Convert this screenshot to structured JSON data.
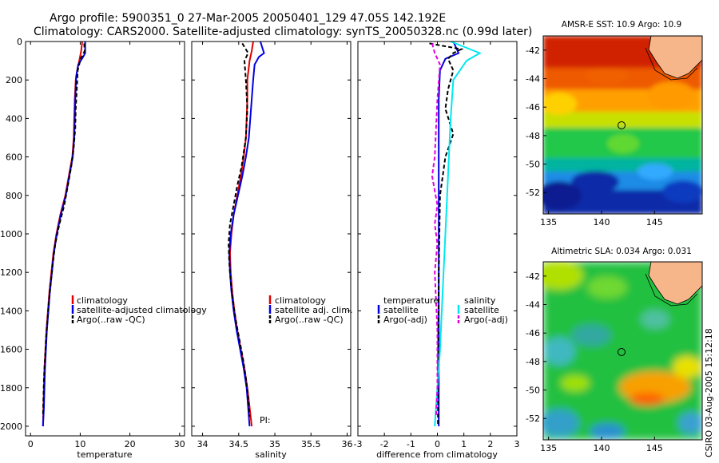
{
  "header": {
    "title_line1": "Argo profile:  5900351_0 27-Mar-2005 20050401_129 47.05S 142.192E",
    "title_line2": "Climatology: CARS2000. Satellite-adjusted climatology: synTS_20050328.nc (0.99d later)"
  },
  "side_label": "CSIRO 03-Aug-2005 15:12:18",
  "pi_label": "PI:",
  "colors": {
    "climatology": "#e00000",
    "satellite": "#0000e0",
    "argo": "#000000",
    "salinity_sat": "#00e8f0",
    "salinity_argo": "#e000e0"
  },
  "chart_data": [
    {
      "type": "line",
      "title": "",
      "xlabel": "temperature",
      "ylabel": "",
      "xlim": [
        -1,
        31
      ],
      "ylim": [
        2050,
        0
      ],
      "xticks": [
        0,
        10,
        20,
        30
      ],
      "yticks": [
        0,
        200,
        400,
        600,
        800,
        1000,
        1200,
        1400,
        1600,
        1800,
        2000
      ],
      "legend": [
        "climatology",
        "satellite-adjusted climatology",
        "Argo(..raw -QC)"
      ],
      "series": [
        {
          "name": "climatology",
          "color": "#e00000",
          "points": [
            [
              10.4,
              0
            ],
            [
              10.2,
              50
            ],
            [
              9.8,
              100
            ],
            [
              9.4,
              150
            ],
            [
              9.1,
              200
            ],
            [
              8.9,
              300
            ],
            [
              8.8,
              400
            ],
            [
              8.7,
              500
            ],
            [
              8.4,
              600
            ],
            [
              7.7,
              700
            ],
            [
              7.0,
              800
            ],
            [
              6.0,
              900
            ],
            [
              5.2,
              1000
            ],
            [
              4.6,
              1100
            ],
            [
              4.2,
              1200
            ],
            [
              3.8,
              1300
            ],
            [
              3.5,
              1400
            ],
            [
              3.2,
              1500
            ],
            [
              3.0,
              1600
            ],
            [
              2.8,
              1700
            ],
            [
              2.7,
              1800
            ],
            [
              2.6,
              1900
            ],
            [
              2.5,
              2000
            ]
          ]
        },
        {
          "name": "satellite-adjusted climatology",
          "color": "#0000e0",
          "points": [
            [
              11.0,
              0
            ],
            [
              11.0,
              60
            ],
            [
              10.6,
              80
            ],
            [
              9.6,
              120
            ],
            [
              9.2,
              180
            ],
            [
              9.0,
              300
            ],
            [
              8.9,
              400
            ],
            [
              8.8,
              500
            ],
            [
              8.5,
              600
            ],
            [
              7.8,
              700
            ],
            [
              7.1,
              800
            ],
            [
              6.1,
              900
            ],
            [
              5.3,
              1000
            ],
            [
              4.7,
              1100
            ],
            [
              4.3,
              1200
            ],
            [
              3.9,
              1300
            ],
            [
              3.6,
              1400
            ],
            [
              3.3,
              1500
            ],
            [
              3.1,
              1600
            ],
            [
              2.9,
              1700
            ],
            [
              2.8,
              1800
            ],
            [
              2.7,
              1900
            ],
            [
              2.5,
              2000
            ]
          ]
        },
        {
          "name": "Argo(..raw -QC)",
          "color": "#000000",
          "dashed": true,
          "points": [
            [
              10.8,
              10
            ],
            [
              10.9,
              50
            ],
            [
              10.1,
              90
            ],
            [
              9.5,
              150
            ],
            [
              9.3,
              250
            ],
            [
              9.1,
              350
            ],
            [
              9.0,
              450
            ],
            [
              8.7,
              550
            ],
            [
              8.2,
              650
            ],
            [
              7.5,
              750
            ],
            [
              6.8,
              850
            ],
            [
              5.8,
              950
            ],
            [
              5.0,
              1050
            ],
            [
              4.5,
              1150
            ],
            [
              4.1,
              1250
            ],
            [
              3.7,
              1350
            ],
            [
              3.4,
              1450
            ],
            [
              3.1,
              1550
            ],
            [
              2.9,
              1650
            ],
            [
              2.7,
              1750
            ],
            [
              2.6,
              1850
            ],
            [
              2.5,
              1950
            ]
          ]
        }
      ]
    },
    {
      "type": "line",
      "title": "",
      "xlabel": "salinity",
      "ylabel": "",
      "xlim": [
        33.85,
        36.05
      ],
      "ylim": [
        2050,
        0
      ],
      "xticks": [
        34,
        34.5,
        35,
        35.5,
        36
      ],
      "xticklabels": [
        "34",
        "34.5",
        "35",
        "35.5",
        "36"
      ],
      "yticks": [
        0,
        200,
        400,
        600,
        800,
        1000,
        1200,
        1400,
        1600,
        1800,
        2000
      ],
      "legend": [
        "climatology",
        "satellite adj. clim.",
        "Argo(..raw -QC)"
      ],
      "series": [
        {
          "name": "climatology",
          "color": "#e00000",
          "points": [
            [
              34.7,
              0
            ],
            [
              34.68,
              50
            ],
            [
              34.65,
              100
            ],
            [
              34.62,
              200
            ],
            [
              34.62,
              300
            ],
            [
              34.61,
              400
            ],
            [
              34.6,
              500
            ],
            [
              34.57,
              600
            ],
            [
              34.53,
              700
            ],
            [
              34.48,
              800
            ],
            [
              34.43,
              900
            ],
            [
              34.4,
              1000
            ],
            [
              34.38,
              1100
            ],
            [
              34.39,
              1200
            ],
            [
              34.41,
              1300
            ],
            [
              34.44,
              1400
            ],
            [
              34.48,
              1500
            ],
            [
              34.53,
              1600
            ],
            [
              34.58,
              1700
            ],
            [
              34.62,
              1800
            ],
            [
              34.65,
              1900
            ],
            [
              34.68,
              2000
            ]
          ]
        },
        {
          "name": "satellite adj. clim.",
          "color": "#0000e0",
          "points": [
            [
              34.8,
              0
            ],
            [
              34.85,
              60
            ],
            [
              34.78,
              80
            ],
            [
              34.72,
              120
            ],
            [
              34.7,
              200
            ],
            [
              34.68,
              300
            ],
            [
              34.66,
              400
            ],
            [
              34.64,
              500
            ],
            [
              34.6,
              600
            ],
            [
              34.55,
              700
            ],
            [
              34.49,
              800
            ],
            [
              34.43,
              900
            ],
            [
              34.39,
              1000
            ],
            [
              34.37,
              1100
            ],
            [
              34.38,
              1200
            ],
            [
              34.4,
              1300
            ],
            [
              34.43,
              1400
            ],
            [
              34.47,
              1500
            ],
            [
              34.52,
              1600
            ],
            [
              34.57,
              1700
            ],
            [
              34.61,
              1800
            ],
            [
              34.63,
              1900
            ],
            [
              34.65,
              2000
            ]
          ]
        },
        {
          "name": "Argo(..raw -QC)",
          "color": "#000000",
          "dashed": true,
          "points": [
            [
              34.55,
              10
            ],
            [
              34.63,
              60
            ],
            [
              34.58,
              100
            ],
            [
              34.6,
              200
            ],
            [
              34.62,
              350
            ],
            [
              34.6,
              500
            ],
            [
              34.54,
              650
            ],
            [
              34.48,
              750
            ],
            [
              34.43,
              850
            ],
            [
              34.38,
              950
            ],
            [
              34.36,
              1050
            ],
            [
              34.37,
              1150
            ],
            [
              34.39,
              1250
            ],
            [
              34.42,
              1350
            ],
            [
              34.46,
              1450
            ],
            [
              34.51,
              1550
            ],
            [
              34.56,
              1650
            ],
            [
              34.6,
              1750
            ],
            [
              34.63,
              1850
            ],
            [
              34.65,
              1950
            ]
          ]
        }
      ]
    },
    {
      "type": "line",
      "title": "",
      "xlabel": "difference from climatology",
      "ylabel": "",
      "xlim": [
        -3,
        3
      ],
      "ylim": [
        2050,
        0
      ],
      "xticks": [
        -3,
        -2,
        -1,
        0,
        1,
        2,
        3
      ],
      "yticks": [
        0,
        200,
        400,
        600,
        800,
        1000,
        1200,
        1400,
        1600,
        1800,
        2000
      ],
      "legend_left": [
        "temperature",
        "satellite",
        "Argo(-adj)"
      ],
      "legend_right": [
        "salinity",
        "satellite",
        "Argo(-adj)"
      ],
      "series": [
        {
          "name": "temperature satellite",
          "color": "#0000e0",
          "points": [
            [
              0.6,
              0
            ],
            [
              0.8,
              60
            ],
            [
              0.3,
              90
            ],
            [
              0.1,
              150
            ],
            [
              0.05,
              300
            ],
            [
              0.05,
              600
            ],
            [
              0.05,
              1000
            ],
            [
              0.05,
              1500
            ],
            [
              0.05,
              2000
            ]
          ]
        },
        {
          "name": "temperature Argo(-adj)",
          "color": "#000000",
          "dashed": true,
          "points": [
            [
              -0.3,
              10
            ],
            [
              0.9,
              40
            ],
            [
              0.6,
              60
            ],
            [
              0.4,
              90
            ],
            [
              0.6,
              150
            ],
            [
              0.4,
              250
            ],
            [
              0.3,
              350
            ],
            [
              0.6,
              480
            ],
            [
              0.3,
              600
            ],
            [
              0.1,
              800
            ],
            [
              0.05,
              1200
            ],
            [
              0.03,
              1600
            ],
            [
              0.02,
              2000
            ]
          ]
        },
        {
          "name": "salinity satellite",
          "color": "#00e8f0",
          "points": [
            [
              0.5,
              0
            ],
            [
              1.6,
              60
            ],
            [
              1.1,
              100
            ],
            [
              0.6,
              200
            ],
            [
              0.5,
              400
            ],
            [
              0.4,
              700
            ],
            [
              0.3,
              1000
            ],
            [
              0.2,
              1300
            ],
            [
              0.1,
              1600
            ],
            [
              0.0,
              1800
            ],
            [
              -0.1,
              2000
            ]
          ]
        },
        {
          "name": "salinity Argo(-adj)",
          "color": "#e000e0",
          "dashed": true,
          "points": [
            [
              -0.2,
              10
            ],
            [
              -0.1,
              60
            ],
            [
              0.1,
              120
            ],
            [
              0.0,
              300
            ],
            [
              -0.1,
              600
            ],
            [
              -0.2,
              700
            ],
            [
              0.0,
              850
            ],
            [
              -0.1,
              950
            ],
            [
              0.0,
              1050
            ],
            [
              -0.1,
              1200
            ],
            [
              0.0,
              1500
            ],
            [
              0.0,
              1800
            ],
            [
              -0.05,
              1950
            ]
          ]
        }
      ]
    },
    {
      "type": "heatmap",
      "title": "AMSR-E SST: 10.9 Argo: 10.9",
      "xlim": [
        134.5,
        149.5
      ],
      "ylim": [
        -53.5,
        -41
      ],
      "xticks": [
        135,
        140,
        145
      ],
      "yticks": [
        -42,
        -44,
        -46,
        -48,
        -50,
        -52
      ],
      "marker": {
        "lon": 142.19,
        "lat": -47.05
      }
    },
    {
      "type": "heatmap",
      "title": "Altimetric SLA: 0.034 Argo: 0.031",
      "xlim": [
        134.5,
        149.5
      ],
      "ylim": [
        -53.5,
        -41
      ],
      "xticks": [
        135,
        140,
        145
      ],
      "yticks": [
        -42,
        -44,
        -46,
        -48,
        -50,
        -52
      ],
      "marker": {
        "lon": 142.19,
        "lat": -47.05
      }
    }
  ]
}
